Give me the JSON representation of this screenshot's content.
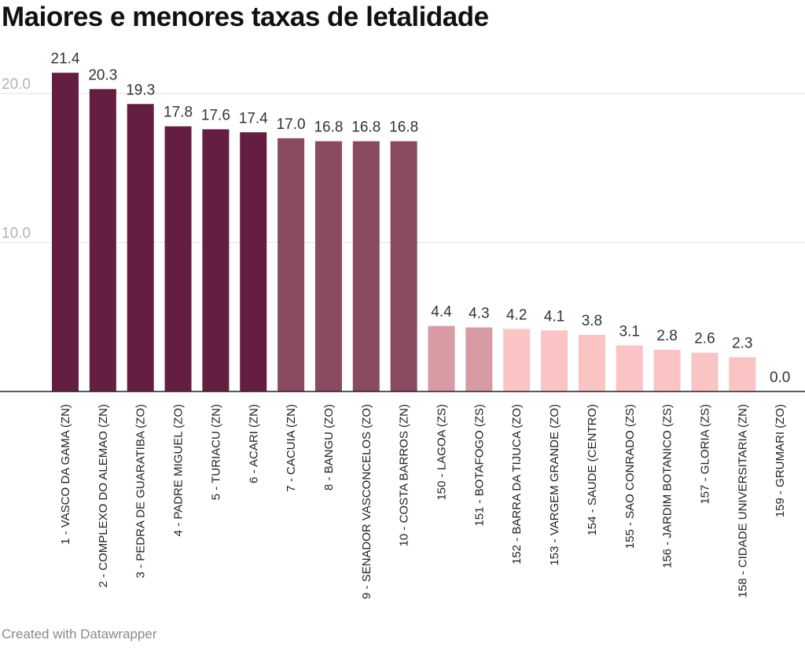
{
  "chart_data": {
    "type": "bar",
    "title": "Maiores e menores taxas de letalidade",
    "xlabel": "",
    "ylabel": "",
    "ylim": [
      0,
      22
    ],
    "yticks": [
      10.0,
      20.0
    ],
    "ytick_labels": [
      "10.0",
      "20.0"
    ],
    "grid": true,
    "categories": [
      "1 - VASCO DA GAMA (ZN)",
      "2 - COMPLEXO DO ALEMAO (ZN)",
      "3 - PEDRA DE GUARATIBA (ZO)",
      "4 - PADRE MIGUEL (ZO)",
      "5 - TURIACU (ZN)",
      "6 - ACARI (ZN)",
      "7 - CACUIA (ZN)",
      "8 - BANGU (ZO)",
      "9 - SENADOR VASCONCELOS (ZO)",
      "10 - COSTA BARROS (ZN)",
      "150 - LAGOA (ZS)",
      "151 - BOTAFOGO (ZS)",
      "152 - BARRA DA TIJUCA (ZO)",
      "153 - VARGEM GRANDE (ZO)",
      "154 - SAUDE (CENTRO)",
      "155 - SAO CONRADO (ZS)",
      "156 - JARDIM BOTANICO (ZS)",
      "157 - GLORIA (ZS)",
      "158 - CIDADE UNIVERSITARIA (ZN)",
      "159 - GRUMARI (ZO)"
    ],
    "values": [
      21.4,
      20.3,
      19.3,
      17.8,
      17.6,
      17.4,
      17.0,
      16.8,
      16.8,
      16.8,
      4.4,
      4.3,
      4.2,
      4.1,
      3.8,
      3.1,
      2.8,
      2.6,
      2.3,
      0.0
    ],
    "value_labels": [
      "21.4",
      "20.3",
      "19.3",
      "17.8",
      "17.6",
      "17.4",
      "17.0",
      "16.8",
      "16.8",
      "16.8",
      "4.4",
      "4.3",
      "4.2",
      "4.1",
      "3.8",
      "3.1",
      "2.8",
      "2.6",
      "2.3",
      "0.0"
    ],
    "colors": [
      "#641e41",
      "#641e41",
      "#641e41",
      "#641e41",
      "#641e41",
      "#641e41",
      "#8a4a62",
      "#8a4a62",
      "#8a4a62",
      "#8a4a62",
      "#d89ba3",
      "#d89ba3",
      "#fbc4c4",
      "#fbc4c4",
      "#fbc4c4",
      "#fbc4c4",
      "#fbc4c4",
      "#fbc4c4",
      "#fbc4c4",
      "#fbc4c4"
    ]
  },
  "footer": {
    "credit": "Created with Datawrapper"
  }
}
